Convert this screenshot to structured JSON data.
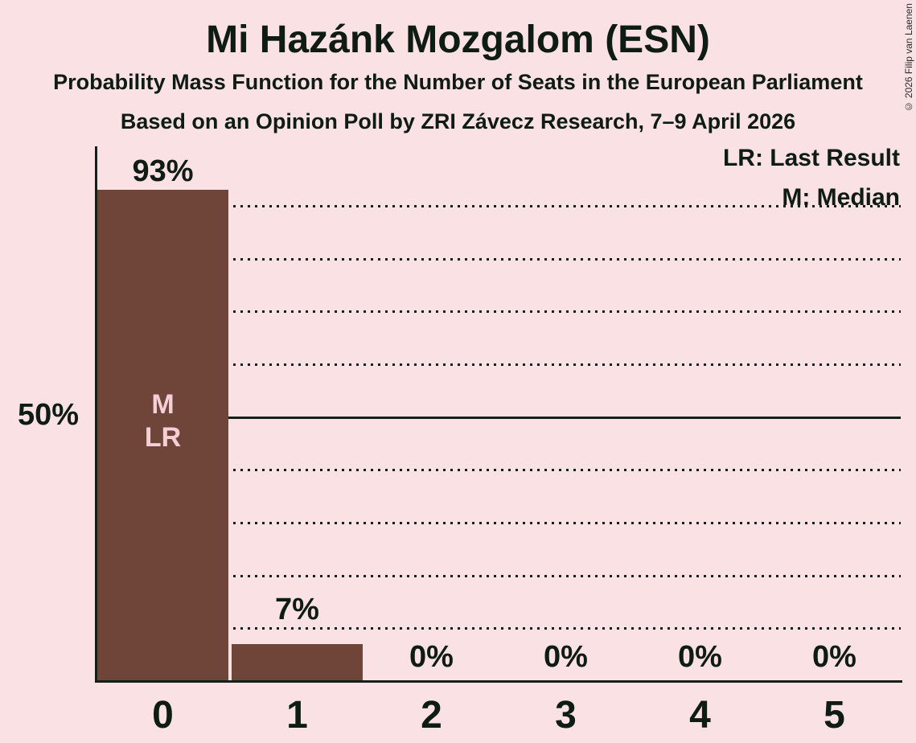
{
  "header": {
    "title": "Mi Hazánk Mozgalom (ESN)",
    "subtitle1": "Probability Mass Function for the Number of Seats in the European Parliament",
    "subtitle2": "Based on an Opinion Poll by ZRI Závecz Research, 7–9 April 2026"
  },
  "copyright": "© 2026 Filip van Laenen",
  "chart_data": {
    "type": "bar",
    "title": "Mi Hazánk Mozgalom (ESN)",
    "categories": [
      "0",
      "1",
      "2",
      "3",
      "4",
      "5"
    ],
    "values": [
      93,
      7,
      0,
      0,
      0,
      0
    ],
    "value_labels": [
      "93%",
      "7%",
      "0%",
      "0%",
      "0%",
      "0%"
    ],
    "ylim": [
      0,
      100
    ],
    "y_axis_tick_label": "50%",
    "y_gridlines_pct": [
      10,
      20,
      30,
      40,
      50,
      60,
      70,
      80,
      90
    ],
    "y_solid_line_pct": 50,
    "grid_style": "dotted",
    "legend": [
      "LR: Last Result",
      "M: Median"
    ],
    "legend_position": "top-right",
    "bar_annotations": {
      "category": "0",
      "lines": [
        "M",
        "LR"
      ]
    },
    "colors": {
      "background": "#fae1e4",
      "bar": "#6f4539",
      "bar_annotation_text": "#f4d0d6",
      "text": "#0f1c14"
    }
  }
}
